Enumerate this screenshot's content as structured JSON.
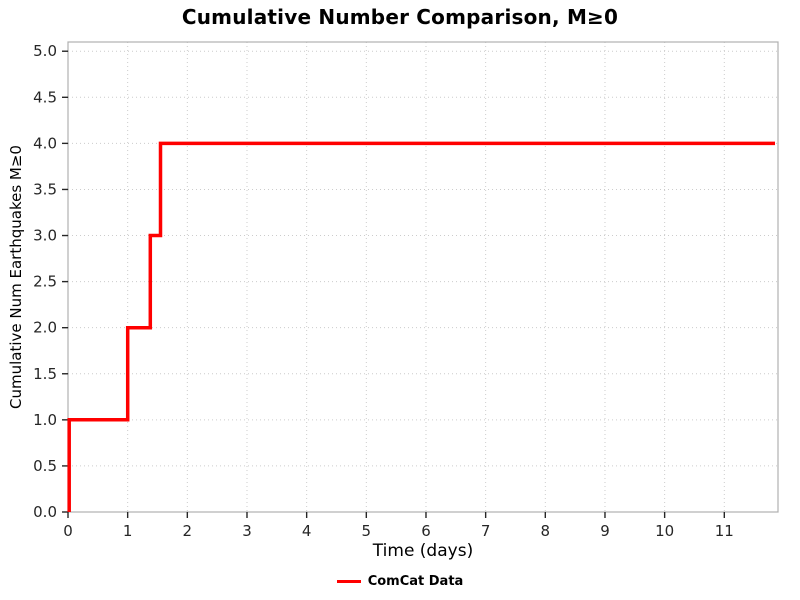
{
  "title": "Cumulative Number Comparison, M≥0",
  "axes": {
    "xlabel": "Time (days)",
    "ylabel": "Cumulative Num Earthquakes M≥0"
  },
  "legend": {
    "label": "ComCat Data",
    "color": "#ff0000"
  },
  "chart_data": {
    "type": "line",
    "style": "step-post",
    "title": "Cumulative Number Comparison, M≥0",
    "xlabel": "Time (days)",
    "ylabel": "Cumulative Num Earthquakes M≥0",
    "xlim": [
      0,
      11.9
    ],
    "ylim": [
      0,
      5.1
    ],
    "x_tick_labels": [
      "0",
      "1",
      "2",
      "3",
      "4",
      "5",
      "6",
      "7",
      "8",
      "9",
      "10",
      "11"
    ],
    "y_tick_labels": [
      "0.0",
      "0.5",
      "1.0",
      "1.5",
      "2.0",
      "2.5",
      "3.0",
      "3.5",
      "4.0",
      "4.5",
      "5.0"
    ],
    "grid": {
      "show": true,
      "color": "#cccccc",
      "dash": "dotted"
    },
    "legend_position": "bottom-center",
    "series": [
      {
        "name": "ComCat Data",
        "color": "#ff0000",
        "line_width": 3.5,
        "start": {
          "x": 0.02,
          "y": 0
        },
        "events": [
          {
            "x": 0.02,
            "cumulative": 1
          },
          {
            "x": 1.0,
            "cumulative": 2
          },
          {
            "x": 1.38,
            "cumulative": 3
          },
          {
            "x": 1.55,
            "cumulative": 4
          }
        ],
        "end_x": 11.85
      }
    ]
  }
}
